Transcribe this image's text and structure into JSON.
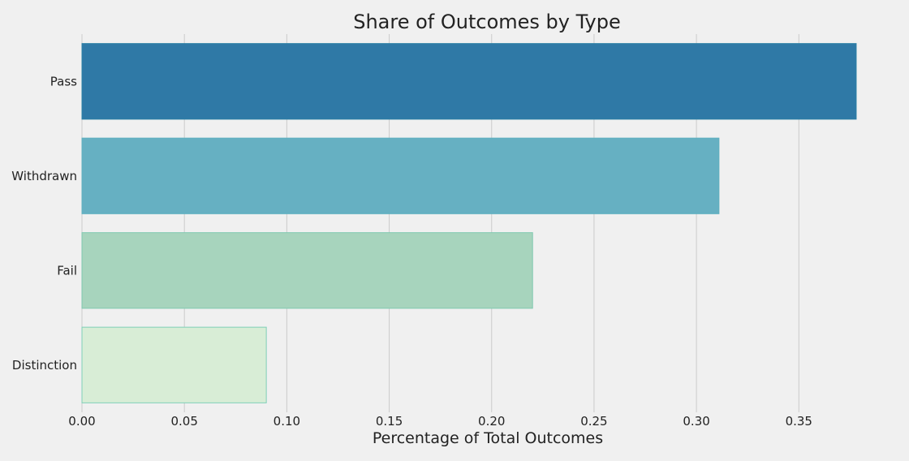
{
  "chart_data": {
    "type": "bar",
    "orientation": "horizontal",
    "title": "Share of Outcomes by Type",
    "xlabel": "Percentage of Total Outcomes",
    "ylabel": "",
    "categories": [
      "Pass",
      "Withdrawn",
      "Fail",
      "Distinction"
    ],
    "values": [
      0.378,
      0.311,
      0.22,
      0.09
    ],
    "colors": [
      "#2f79a6",
      "#66b0c2",
      "#a7d4bd",
      "#d8edd6"
    ],
    "edge_colors": [
      "#2a7fa5",
      "#5fb0c0",
      "#7fc9b0",
      "#7fcfb8"
    ],
    "xlim": [
      0,
      0.38
    ],
    "xticks": [
      0.0,
      0.05,
      0.1,
      0.15,
      0.2,
      0.25,
      0.3,
      0.35
    ],
    "xtick_labels": [
      "0.00",
      "0.05",
      "0.10",
      "0.15",
      "0.20",
      "0.25",
      "0.30",
      "0.35"
    ],
    "grid": "vertical",
    "legend": "none"
  }
}
